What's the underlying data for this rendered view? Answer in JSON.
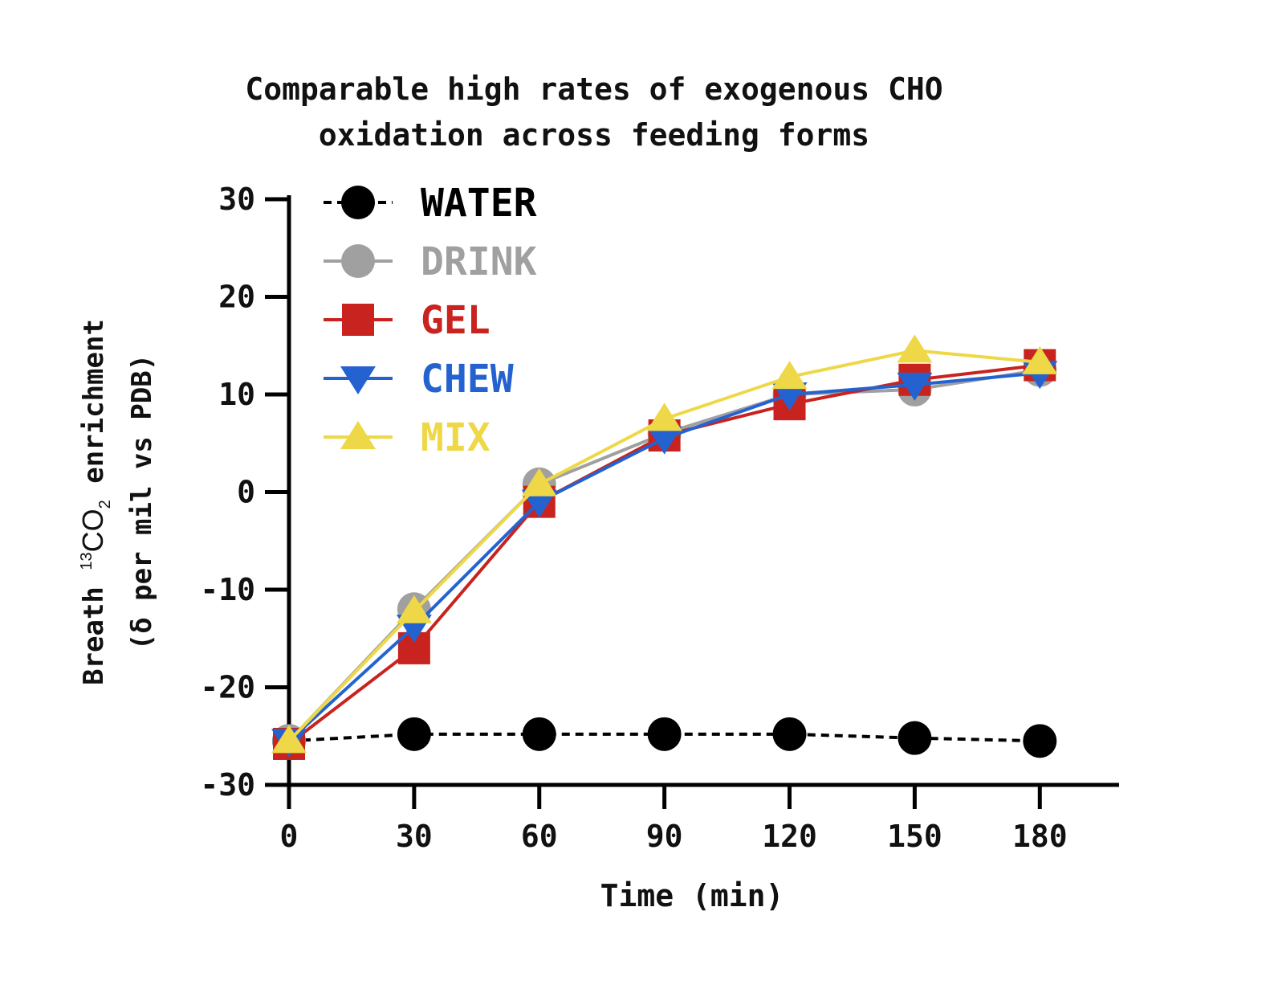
{
  "chart_data": {
    "type": "line",
    "title_line1": "Comparable high rates of exogenous CHO",
    "title_line2": "oxidation across feeding forms",
    "xlabel": "Time (min)",
    "ylabel": {
      "prefix": "Breath ",
      "isotope": "13",
      "molecule": "CO",
      "subscript": "2",
      "suffix": " enrichment",
      "line2": "(δ per mil vs PDB)"
    },
    "x": [
      0,
      30,
      60,
      90,
      120,
      150,
      180
    ],
    "x_ticks": [
      "0",
      "30",
      "60",
      "90",
      "120",
      "150",
      "180"
    ],
    "y_ticks": [
      "30",
      "20",
      "10",
      "0",
      "-10",
      "-20",
      "-30"
    ],
    "ylim": [
      -30,
      30
    ],
    "xlim": [
      0,
      199
    ],
    "grid": false,
    "legend_position": "top-left",
    "series": [
      {
        "name": "WATER",
        "color": "#000000",
        "marker": "circle",
        "dashed": true,
        "values": [
          -25.5,
          -24.8,
          -24.8,
          -24.8,
          -24.8,
          -25.2,
          -25.5
        ]
      },
      {
        "name": "DRINK",
        "color": "#a0a0a0",
        "marker": "circle",
        "dashed": false,
        "values": [
          -25.5,
          -12.0,
          0.8,
          6.0,
          10.0,
          10.5,
          12.5
        ]
      },
      {
        "name": "GEL",
        "color": "#c8231e",
        "marker": "square",
        "dashed": false,
        "values": [
          -25.8,
          -16.0,
          -1.0,
          5.8,
          9.0,
          11.5,
          13.0
        ]
      },
      {
        "name": "CHEW",
        "color": "#2463cf",
        "marker": "triangle-down",
        "dashed": false,
        "values": [
          -25.5,
          -13.8,
          -1.0,
          5.5,
          10.0,
          11.0,
          12.2
        ]
      },
      {
        "name": "MIX",
        "color": "#eed848",
        "marker": "triangle-up",
        "dashed": false,
        "values": [
          -25.5,
          -12.2,
          0.8,
          7.5,
          11.8,
          14.5,
          13.3
        ]
      }
    ]
  }
}
